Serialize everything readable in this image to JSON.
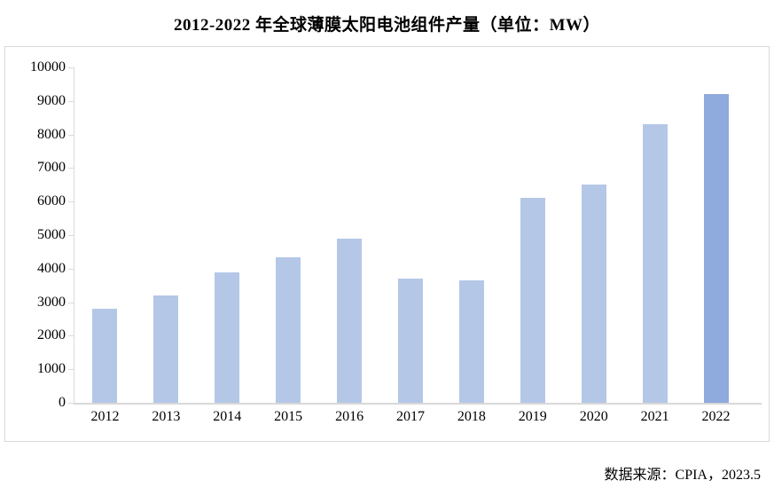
{
  "chart_data": {
    "type": "bar",
    "title": "2012-2022 年全球薄膜太阳电池组件产量（单位：MW）",
    "categories": [
      "2012",
      "2013",
      "2014",
      "2015",
      "2016",
      "2017",
      "2018",
      "2019",
      "2020",
      "2021",
      "2022"
    ],
    "values": [
      2800,
      3200,
      3900,
      4350,
      4900,
      3700,
      3650,
      6100,
      6500,
      8300,
      9200
    ],
    "unit": "MW",
    "xlabel": "",
    "ylabel": "",
    "ylim": [
      0,
      10000
    ],
    "ytick_step": 1000,
    "grid": false,
    "legend": "none",
    "bar_color_default": "#b4c7e7",
    "bar_color_highlight": "#8faadc",
    "highlight_category": "2022",
    "axis_color": "#d9d9d9",
    "frame_border_color": "#d9d9d9",
    "text_color": "#000000"
  },
  "footer": {
    "source_note": "数据来源：CPIA，2023.5"
  }
}
